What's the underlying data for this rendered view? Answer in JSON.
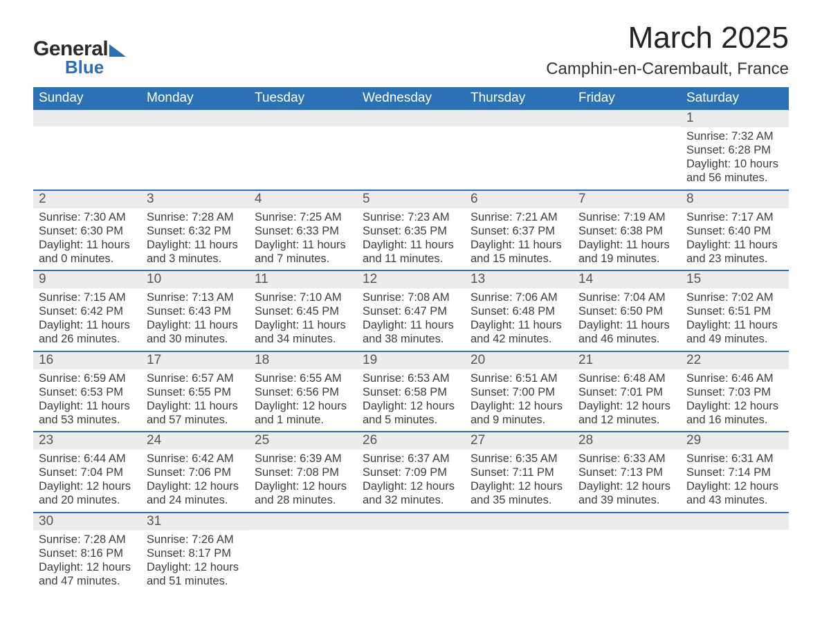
{
  "logo": {
    "general": "General",
    "blue": "Blue"
  },
  "title": "March 2025",
  "location": "Camphin-en-Carembault, France",
  "colors": {
    "header_bg": "#2a72b5",
    "header_text": "#ffffff",
    "band_bg": "#ececec",
    "band_text": "#555555",
    "body_text": "#3d3d3d",
    "page_bg": "#ffffff",
    "week_divider": "#2a72b5",
    "logo_blue": "#2a6fb3"
  },
  "day_headers": [
    "Sunday",
    "Monday",
    "Tuesday",
    "Wednesday",
    "Thursday",
    "Friday",
    "Saturday"
  ],
  "weeks": [
    [
      {
        "n": "",
        "sr": "",
        "ss": "",
        "dl": ""
      },
      {
        "n": "",
        "sr": "",
        "ss": "",
        "dl": ""
      },
      {
        "n": "",
        "sr": "",
        "ss": "",
        "dl": ""
      },
      {
        "n": "",
        "sr": "",
        "ss": "",
        "dl": ""
      },
      {
        "n": "",
        "sr": "",
        "ss": "",
        "dl": ""
      },
      {
        "n": "",
        "sr": "",
        "ss": "",
        "dl": ""
      },
      {
        "n": "1",
        "sr": "Sunrise: 7:32 AM",
        "ss": "Sunset: 6:28 PM",
        "dl": "Daylight: 10 hours and 56 minutes."
      }
    ],
    [
      {
        "n": "2",
        "sr": "Sunrise: 7:30 AM",
        "ss": "Sunset: 6:30 PM",
        "dl": "Daylight: 11 hours and 0 minutes."
      },
      {
        "n": "3",
        "sr": "Sunrise: 7:28 AM",
        "ss": "Sunset: 6:32 PM",
        "dl": "Daylight: 11 hours and 3 minutes."
      },
      {
        "n": "4",
        "sr": "Sunrise: 7:25 AM",
        "ss": "Sunset: 6:33 PM",
        "dl": "Daylight: 11 hours and 7 minutes."
      },
      {
        "n": "5",
        "sr": "Sunrise: 7:23 AM",
        "ss": "Sunset: 6:35 PM",
        "dl": "Daylight: 11 hours and 11 minutes."
      },
      {
        "n": "6",
        "sr": "Sunrise: 7:21 AM",
        "ss": "Sunset: 6:37 PM",
        "dl": "Daylight: 11 hours and 15 minutes."
      },
      {
        "n": "7",
        "sr": "Sunrise: 7:19 AM",
        "ss": "Sunset: 6:38 PM",
        "dl": "Daylight: 11 hours and 19 minutes."
      },
      {
        "n": "8",
        "sr": "Sunrise: 7:17 AM",
        "ss": "Sunset: 6:40 PM",
        "dl": "Daylight: 11 hours and 23 minutes."
      }
    ],
    [
      {
        "n": "9",
        "sr": "Sunrise: 7:15 AM",
        "ss": "Sunset: 6:42 PM",
        "dl": "Daylight: 11 hours and 26 minutes."
      },
      {
        "n": "10",
        "sr": "Sunrise: 7:13 AM",
        "ss": "Sunset: 6:43 PM",
        "dl": "Daylight: 11 hours and 30 minutes."
      },
      {
        "n": "11",
        "sr": "Sunrise: 7:10 AM",
        "ss": "Sunset: 6:45 PM",
        "dl": "Daylight: 11 hours and 34 minutes."
      },
      {
        "n": "12",
        "sr": "Sunrise: 7:08 AM",
        "ss": "Sunset: 6:47 PM",
        "dl": "Daylight: 11 hours and 38 minutes."
      },
      {
        "n": "13",
        "sr": "Sunrise: 7:06 AM",
        "ss": "Sunset: 6:48 PM",
        "dl": "Daylight: 11 hours and 42 minutes."
      },
      {
        "n": "14",
        "sr": "Sunrise: 7:04 AM",
        "ss": "Sunset: 6:50 PM",
        "dl": "Daylight: 11 hours and 46 minutes."
      },
      {
        "n": "15",
        "sr": "Sunrise: 7:02 AM",
        "ss": "Sunset: 6:51 PM",
        "dl": "Daylight: 11 hours and 49 minutes."
      }
    ],
    [
      {
        "n": "16",
        "sr": "Sunrise: 6:59 AM",
        "ss": "Sunset: 6:53 PM",
        "dl": "Daylight: 11 hours and 53 minutes."
      },
      {
        "n": "17",
        "sr": "Sunrise: 6:57 AM",
        "ss": "Sunset: 6:55 PM",
        "dl": "Daylight: 11 hours and 57 minutes."
      },
      {
        "n": "18",
        "sr": "Sunrise: 6:55 AM",
        "ss": "Sunset: 6:56 PM",
        "dl": "Daylight: 12 hours and 1 minute."
      },
      {
        "n": "19",
        "sr": "Sunrise: 6:53 AM",
        "ss": "Sunset: 6:58 PM",
        "dl": "Daylight: 12 hours and 5 minutes."
      },
      {
        "n": "20",
        "sr": "Sunrise: 6:51 AM",
        "ss": "Sunset: 7:00 PM",
        "dl": "Daylight: 12 hours and 9 minutes."
      },
      {
        "n": "21",
        "sr": "Sunrise: 6:48 AM",
        "ss": "Sunset: 7:01 PM",
        "dl": "Daylight: 12 hours and 12 minutes."
      },
      {
        "n": "22",
        "sr": "Sunrise: 6:46 AM",
        "ss": "Sunset: 7:03 PM",
        "dl": "Daylight: 12 hours and 16 minutes."
      }
    ],
    [
      {
        "n": "23",
        "sr": "Sunrise: 6:44 AM",
        "ss": "Sunset: 7:04 PM",
        "dl": "Daylight: 12 hours and 20 minutes."
      },
      {
        "n": "24",
        "sr": "Sunrise: 6:42 AM",
        "ss": "Sunset: 7:06 PM",
        "dl": "Daylight: 12 hours and 24 minutes."
      },
      {
        "n": "25",
        "sr": "Sunrise: 6:39 AM",
        "ss": "Sunset: 7:08 PM",
        "dl": "Daylight: 12 hours and 28 minutes."
      },
      {
        "n": "26",
        "sr": "Sunrise: 6:37 AM",
        "ss": "Sunset: 7:09 PM",
        "dl": "Daylight: 12 hours and 32 minutes."
      },
      {
        "n": "27",
        "sr": "Sunrise: 6:35 AM",
        "ss": "Sunset: 7:11 PM",
        "dl": "Daylight: 12 hours and 35 minutes."
      },
      {
        "n": "28",
        "sr": "Sunrise: 6:33 AM",
        "ss": "Sunset: 7:13 PM",
        "dl": "Daylight: 12 hours and 39 minutes."
      },
      {
        "n": "29",
        "sr": "Sunrise: 6:31 AM",
        "ss": "Sunset: 7:14 PM",
        "dl": "Daylight: 12 hours and 43 minutes."
      }
    ],
    [
      {
        "n": "30",
        "sr": "Sunrise: 7:28 AM",
        "ss": "Sunset: 8:16 PM",
        "dl": "Daylight: 12 hours and 47 minutes."
      },
      {
        "n": "31",
        "sr": "Sunrise: 7:26 AM",
        "ss": "Sunset: 8:17 PM",
        "dl": "Daylight: 12 hours and 51 minutes."
      },
      {
        "n": "",
        "sr": "",
        "ss": "",
        "dl": ""
      },
      {
        "n": "",
        "sr": "",
        "ss": "",
        "dl": ""
      },
      {
        "n": "",
        "sr": "",
        "ss": "",
        "dl": ""
      },
      {
        "n": "",
        "sr": "",
        "ss": "",
        "dl": ""
      },
      {
        "n": "",
        "sr": "",
        "ss": "",
        "dl": ""
      }
    ]
  ]
}
